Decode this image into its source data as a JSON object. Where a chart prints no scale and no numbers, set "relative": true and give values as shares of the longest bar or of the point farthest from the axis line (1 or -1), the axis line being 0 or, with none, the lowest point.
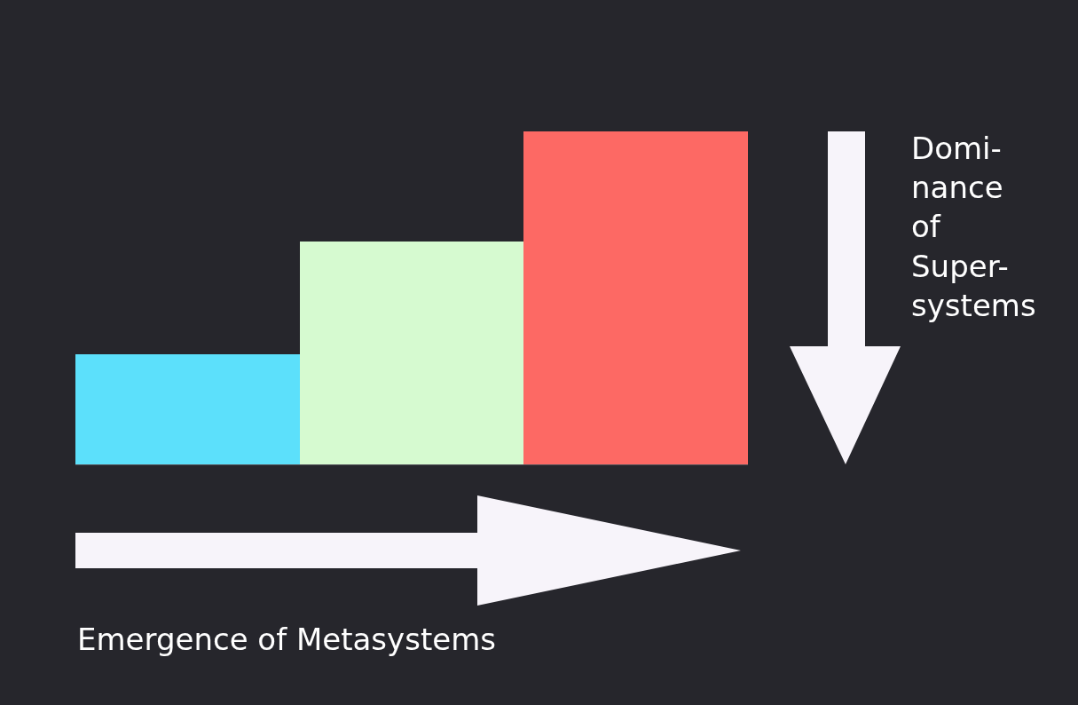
{
  "chart_data": {
    "type": "bar",
    "relative": true,
    "categories": [
      null,
      null,
      null
    ],
    "values": [
      0.33,
      0.67,
      1
    ],
    "colors": [
      "#5ce0fb",
      "#d6fad0",
      "#fd6964"
    ],
    "annotations": [
      "Domi-\nnance\nof\nSuper-\nsystems",
      "Emergence of Metasystems"
    ]
  }
}
